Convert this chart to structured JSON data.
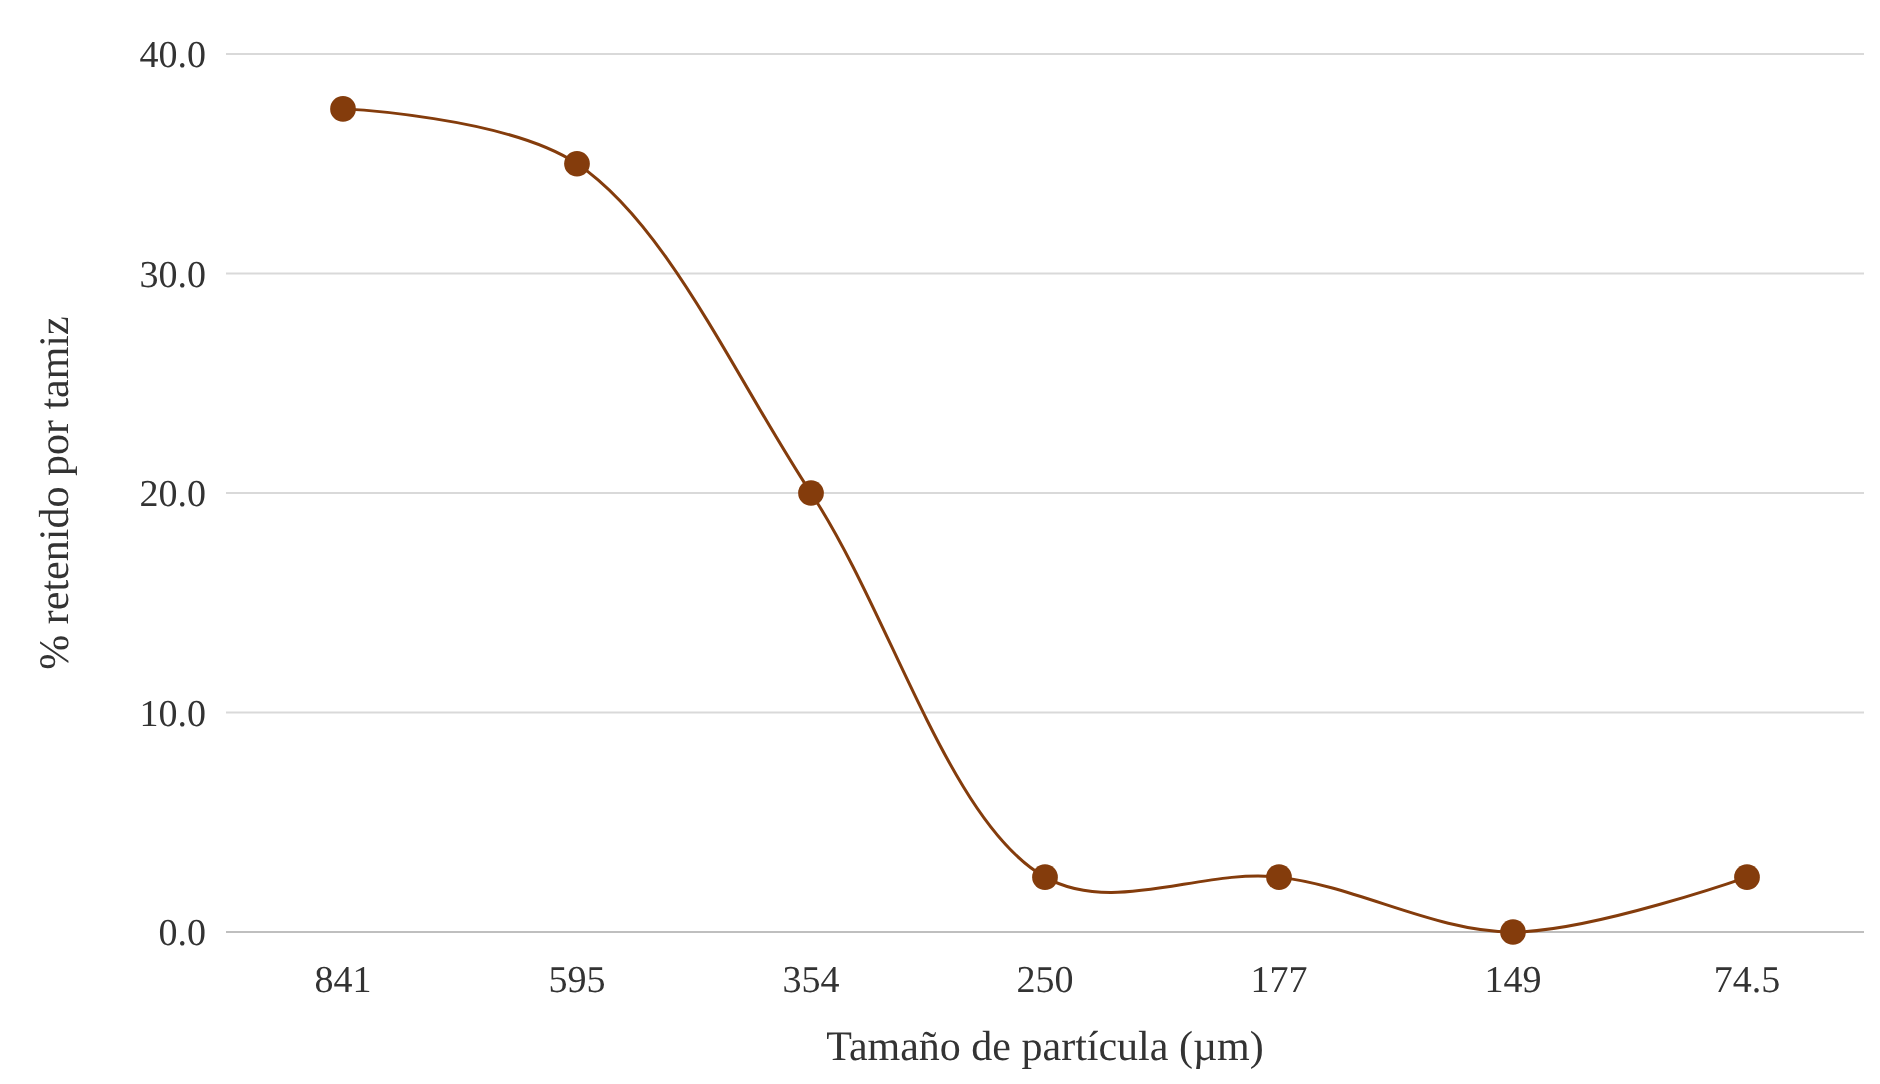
{
  "chart_data": {
    "type": "line",
    "xlabel": "Tamaño de partícula (µm)",
    "ylabel": "% retenido por tamiz",
    "categories": [
      "841",
      "595",
      "354",
      "250",
      "177",
      "149",
      "74.5"
    ],
    "series": [
      {
        "color": "#843c0c",
        "values": [
          37.5,
          35.0,
          20.0,
          2.5,
          2.5,
          0.0,
          2.5
        ]
      }
    ],
    "ylim": [
      0,
      40
    ],
    "yticks": [
      {
        "value": 0,
        "label": "0.0"
      },
      {
        "value": 10,
        "label": "10.0"
      },
      {
        "value": 20,
        "label": "20.0"
      },
      {
        "value": 30,
        "label": "30.0"
      },
      {
        "value": 40,
        "label": "40.0"
      }
    ],
    "grid": "y",
    "marker": "circle",
    "line_style": "solid"
  }
}
